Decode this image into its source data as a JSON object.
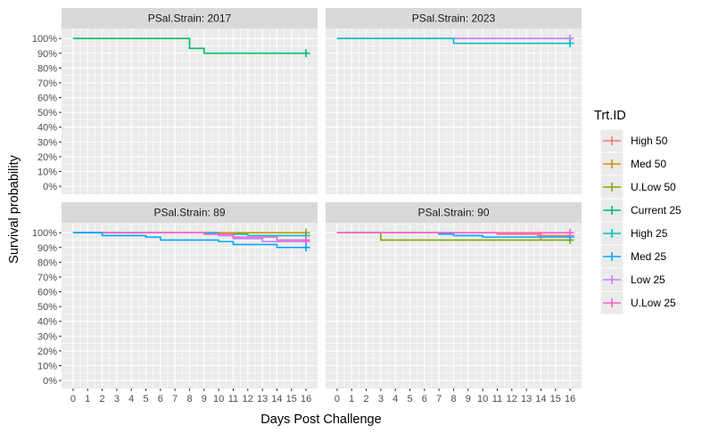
{
  "chart_data": {
    "type": "line",
    "subtype": "kaplan-meier step",
    "xlabel": "Days Post Challenge",
    "ylabel": "Survival probability",
    "x_ticks": [
      0,
      1,
      2,
      3,
      4,
      5,
      6,
      7,
      8,
      9,
      10,
      11,
      12,
      13,
      14,
      15,
      16
    ],
    "xlim": [
      0,
      16
    ],
    "y_ticks": [
      0,
      0.1,
      0.2,
      0.3,
      0.4,
      0.5,
      0.6,
      0.7,
      0.8,
      0.9,
      1.0
    ],
    "y_tick_labels": [
      "0%",
      "10%",
      "20%",
      "30%",
      "40%",
      "50%",
      "60%",
      "70%",
      "80%",
      "90%",
      "100%"
    ],
    "ylim": [
      0,
      1
    ],
    "grid": true,
    "legend": {
      "title": "Trt.ID",
      "position": "right",
      "items": [
        {
          "label": "High 50",
          "color": "#F8766D"
        },
        {
          "label": "Med 50",
          "color": "#CD9600"
        },
        {
          "label": "U.Low 50",
          "color": "#7CAE00"
        },
        {
          "label": "Current 25",
          "color": "#00BE67"
        },
        {
          "label": "High 25",
          "color": "#00BFC4"
        },
        {
          "label": "Med 25",
          "color": "#00A9FF"
        },
        {
          "label": "Low 25",
          "color": "#C77CFF"
        },
        {
          "label": "U.Low 25",
          "color": "#FF61CC"
        }
      ]
    },
    "panels": [
      {
        "strip": "PSal.Strain: 2017",
        "series": [
          {
            "name": "Current 25",
            "color": "#00BE67",
            "x": [
              0,
              8,
              9,
              16
            ],
            "y": [
              1.0,
              0.933,
              0.9,
              0.9
            ],
            "censor": [
              [
                16,
                0.9
              ]
            ]
          }
        ]
      },
      {
        "strip": "PSal.Strain: 2023",
        "series": [
          {
            "name": "Low 25",
            "color": "#C77CFF",
            "x": [
              0,
              16
            ],
            "y": [
              1.0,
              1.0
            ],
            "censor": [
              [
                16,
                1.0
              ]
            ]
          },
          {
            "name": "High 25",
            "color": "#00BFC4",
            "x": [
              0,
              8,
              16
            ],
            "y": [
              1.0,
              0.967,
              0.967
            ],
            "censor": [
              [
                16,
                0.967
              ]
            ]
          }
        ]
      },
      {
        "strip": "PSal.Strain: 89",
        "series": [
          {
            "name": "Med 50",
            "color": "#CD9600",
            "x": [
              0,
              16
            ],
            "y": [
              1.0,
              1.0
            ],
            "censor": [
              [
                16,
                1.0
              ]
            ]
          },
          {
            "name": "High 25",
            "color": "#00BFC4",
            "x": [
              0,
              10,
              12,
              16
            ],
            "y": [
              1.0,
              0.99,
              0.98,
              0.98
            ],
            "censor": [
              [
                16,
                0.98
              ]
            ]
          },
          {
            "name": "Low 25",
            "color": "#C77CFF",
            "x": [
              0,
              9,
              10,
              11,
              13,
              16
            ],
            "y": [
              1.0,
              0.99,
              0.98,
              0.96,
              0.94,
              0.94
            ],
            "censor": [
              [
                16,
                0.94
              ]
            ]
          },
          {
            "name": "U.Low 25",
            "color": "#FF61CC",
            "x": [
              0,
              9,
              11,
              14,
              16
            ],
            "y": [
              1.0,
              0.99,
              0.97,
              0.95,
              0.95
            ],
            "censor": [
              [
                16,
                0.95
              ]
            ]
          },
          {
            "name": "Med 25",
            "color": "#00A9FF",
            "x": [
              0,
              2,
              5,
              6,
              10,
              11,
              14,
              16
            ],
            "y": [
              1.0,
              0.98,
              0.97,
              0.95,
              0.94,
              0.92,
              0.9,
              0.9
            ],
            "censor": [
              [
                16,
                0.9
              ]
            ]
          }
        ]
      },
      {
        "strip": "PSal.Strain: 90",
        "series": [
          {
            "name": "High 50",
            "color": "#F8766D",
            "x": [
              0,
              11,
              14,
              16
            ],
            "y": [
              1.0,
              0.99,
              0.98,
              0.98
            ],
            "censor": [
              [
                14,
                0.98
              ],
              [
                16,
                0.98
              ]
            ]
          },
          {
            "name": "U.Low 50",
            "color": "#7CAE00",
            "x": [
              0,
              3,
              16
            ],
            "y": [
              1.0,
              0.95,
              0.95
            ],
            "censor": [
              [
                16,
                0.95
              ]
            ]
          },
          {
            "name": "Med 25",
            "color": "#00A9FF",
            "x": [
              0,
              7,
              8,
              10,
              16
            ],
            "y": [
              1.0,
              0.99,
              0.98,
              0.97,
              0.97
            ],
            "censor": [
              [
                16,
                0.97
              ]
            ]
          },
          {
            "name": "U.Low 25",
            "color": "#FF61CC",
            "x": [
              0,
              16
            ],
            "y": [
              1.0,
              1.0
            ],
            "censor": [
              [
                16,
                1.0
              ]
            ]
          }
        ]
      }
    ]
  }
}
